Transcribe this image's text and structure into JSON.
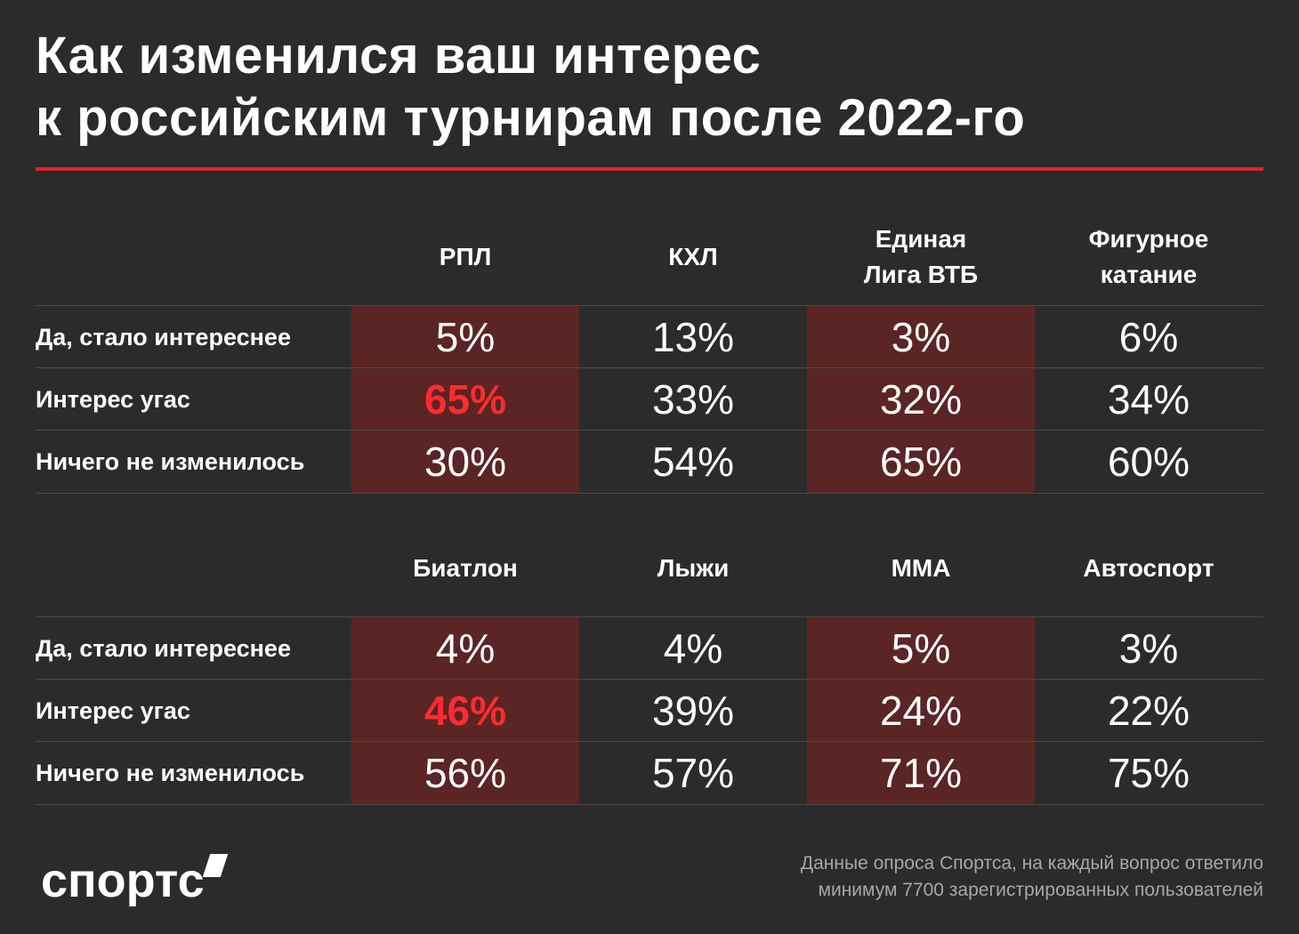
{
  "title_line1": "Как изменился ваш интерес",
  "title_line2": "к российским турнирам после 2022-го",
  "accent_color": "#e3202c",
  "highlight_color": "#ff2b2f",
  "shade_color": "#5a2524",
  "row_labels": [
    "Да, стало интереснее",
    "Интерес угас",
    "Ничего не изменилось"
  ],
  "chart_data": [
    {
      "type": "table",
      "columns": [
        {
          "name_lines": [
            "РПЛ"
          ],
          "values": [
            "5%",
            "65%",
            "30%"
          ]
        },
        {
          "name_lines": [
            "КХЛ"
          ],
          "values": [
            "13%",
            "33%",
            "54%"
          ]
        },
        {
          "name_lines": [
            "Единая",
            "Лига ВТБ"
          ],
          "values": [
            "3%",
            "32%",
            "65%"
          ]
        },
        {
          "name_lines": [
            "Фигурное",
            "катание"
          ],
          "values": [
            "6%",
            "34%",
            "60%"
          ]
        }
      ]
    },
    {
      "type": "table",
      "columns": [
        {
          "name_lines": [
            "Биатлон"
          ],
          "values": [
            "4%",
            "46%",
            "56%"
          ]
        },
        {
          "name_lines": [
            "Лыжи"
          ],
          "values": [
            "4%",
            "39%",
            "57%"
          ]
        },
        {
          "name_lines": [
            "ММА"
          ],
          "values": [
            "5%",
            "24%",
            "71%"
          ]
        },
        {
          "name_lines": [
            "Автоспорт"
          ],
          "values": [
            "3%",
            "22%",
            "75%"
          ]
        }
      ]
    }
  ],
  "highlighted_cells": [
    {
      "table": 0,
      "column": 0,
      "row": 1
    },
    {
      "table": 1,
      "column": 0,
      "row": 1
    }
  ],
  "logo_text": "спортс",
  "footnote_line1": "Данные опроса Спортса, на каждый вопрос ответило",
  "footnote_line2": "минимум 7700 зарегистрированных пользователей"
}
